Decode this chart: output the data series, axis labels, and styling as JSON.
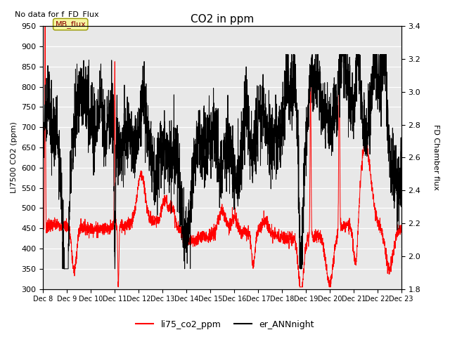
{
  "title": "CO2 in ppm",
  "ylabel_left": "LI7500 CO2 (ppm)",
  "ylabel_right": "FD Chamber flux",
  "ylim_left": [
    300,
    950
  ],
  "ylim_right": [
    1.8,
    3.4
  ],
  "yticks_left": [
    300,
    350,
    400,
    450,
    500,
    550,
    600,
    650,
    700,
    750,
    800,
    850,
    900,
    950
  ],
  "yticks_right": [
    1.8,
    2.0,
    2.2,
    2.4,
    2.6,
    2.8,
    3.0,
    3.2,
    3.4
  ],
  "xlabel_ticks": [
    "Dec 8",
    "Dec 9",
    "Dec 10",
    "Dec 11",
    "Dec 12",
    "Dec 13",
    "Dec 14",
    "Dec 15",
    "Dec 16",
    "Dec 17",
    "Dec 18",
    "Dec 19",
    "Dec 20",
    "Dec 21",
    "Dec 22",
    "Dec 23"
  ],
  "no_data_text": "No data for f_FD_Flux",
  "annotation_text": "MB_flux",
  "legend_labels": [
    "li75_co2_ppm",
    "er_ANNnight"
  ],
  "line_colors": [
    "red",
    "black"
  ],
  "plot_bg_color": "#e8e8e8",
  "figsize": [
    6.4,
    4.8
  ],
  "dpi": 100
}
